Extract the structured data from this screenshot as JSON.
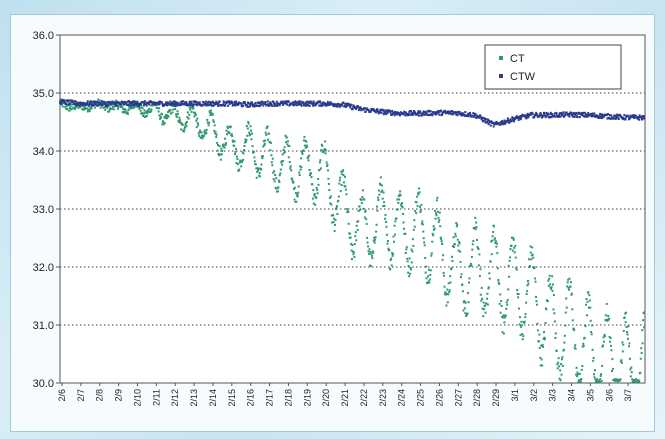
{
  "chart_data": {
    "type": "scatter",
    "ylim": [
      30.0,
      36.0
    ],
    "yticks": [
      "36.0",
      "35.0",
      "34.0",
      "33.0",
      "32.0",
      "31.0",
      "30.0"
    ],
    "xlabels": [
      "2/6",
      "2/7",
      "2/8",
      "2/9",
      "2/10",
      "2/11",
      "2/12",
      "2/13",
      "2/14",
      "2/15",
      "2/16",
      "2/17",
      "2/18",
      "2/19",
      "2/20",
      "2/21",
      "2/22",
      "2/23",
      "2/24",
      "2/25",
      "2/26",
      "2/27",
      "2/28",
      "2/29",
      "3/1",
      "3/2",
      "3/3",
      "3/4",
      "3/5",
      "3/6",
      "3/7"
    ],
    "grid": true,
    "legend_position": "top-right",
    "series": [
      {
        "name": "CT",
        "color": "#2e9a6c",
        "x_days": [
          0,
          1,
          2,
          3,
          4,
          5,
          6,
          7,
          8,
          9,
          10,
          11,
          12,
          13,
          14,
          15,
          16,
          17,
          18,
          19,
          20,
          21,
          22,
          23,
          24,
          25,
          26,
          27,
          28,
          29,
          30
        ],
        "values": [
          34.8,
          34.75,
          34.8,
          34.75,
          34.75,
          34.7,
          34.6,
          34.55,
          34.35,
          34.1,
          34.05,
          33.9,
          33.7,
          33.7,
          33.6,
          33.0,
          32.6,
          32.8,
          32.65,
          32.6,
          32.4,
          31.9,
          32.0,
          31.8,
          31.7,
          31.5,
          31.0,
          30.9,
          30.6,
          30.4,
          30.3
        ],
        "amplitude": [
          0.03,
          0.03,
          0.03,
          0.05,
          0.08,
          0.12,
          0.15,
          0.2,
          0.25,
          0.3,
          0.35,
          0.4,
          0.45,
          0.45,
          0.5,
          0.55,
          0.6,
          0.6,
          0.6,
          0.65,
          0.65,
          0.7,
          0.75,
          0.75,
          0.75,
          0.75,
          0.8,
          0.8,
          0.8,
          0.8,
          0.8
        ]
      },
      {
        "name": "CTW",
        "color": "#2b3a8c",
        "x_days": [
          0,
          1,
          2,
          3,
          4,
          5,
          6,
          7,
          8,
          9,
          10,
          11,
          12,
          13,
          14,
          15,
          16,
          17,
          18,
          19,
          20,
          21,
          22,
          23,
          24,
          25,
          26,
          27,
          28,
          29,
          30
        ],
        "values": [
          34.85,
          34.82,
          34.82,
          34.82,
          34.82,
          34.82,
          34.82,
          34.82,
          34.82,
          34.82,
          34.8,
          34.82,
          34.82,
          34.82,
          34.82,
          34.8,
          34.72,
          34.68,
          34.65,
          34.65,
          34.66,
          34.66,
          34.62,
          34.45,
          34.55,
          34.62,
          34.62,
          34.63,
          34.62,
          34.6,
          34.58
        ]
      }
    ]
  }
}
